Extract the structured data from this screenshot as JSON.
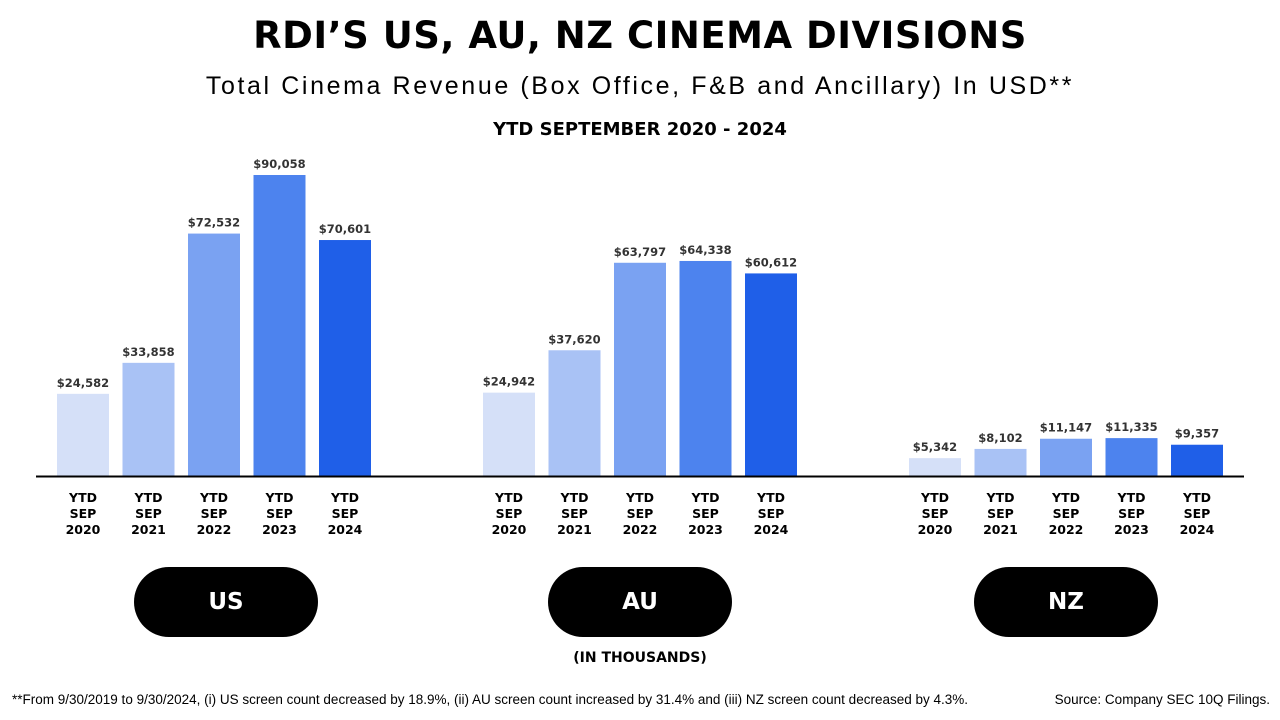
{
  "header": {
    "title": "RDI’S US, AU, NZ CINEMA DIVISIONS",
    "subtitle": "Total Cinema Revenue (Box Office, F&B and Ancillary) In USD**",
    "period": "YTD SEPTEMBER 2020 - 2024"
  },
  "chart_data": {
    "type": "bar",
    "title": "Total Cinema Revenue (Box Office, F&B and Ancillary) In USD**",
    "units": "(IN THOUSANDS)",
    "categories": [
      "YTD SEP 2020",
      "YTD SEP 2021",
      "YTD SEP 2022",
      "YTD SEP 2023",
      "YTD SEP 2024"
    ],
    "category_lines": [
      [
        "YTD",
        "SEP",
        "2020"
      ],
      [
        "YTD",
        "SEP",
        "2021"
      ],
      [
        "YTD",
        "SEP",
        "2022"
      ],
      [
        "YTD",
        "SEP",
        "2023"
      ],
      [
        "YTD",
        "SEP",
        "2024"
      ]
    ],
    "bar_colors": [
      "#d5e0f8",
      "#a9c2f5",
      "#7aa2f2",
      "#4d83ee",
      "#1f5fe8"
    ],
    "ylim": [
      0,
      100000
    ],
    "groups": [
      {
        "name": "US",
        "values": [
          24582,
          33858,
          72532,
          90058,
          70601
        ],
        "labels": [
          "$24,582",
          "$33,858",
          "$72,532",
          "$90,058",
          "$70,601"
        ]
      },
      {
        "name": "AU",
        "values": [
          24942,
          37620,
          63797,
          64338,
          60612
        ],
        "labels": [
          "$24,942",
          "$37,620",
          "$63,797",
          "$64,338",
          "$60,612"
        ]
      },
      {
        "name": "NZ",
        "values": [
          5342,
          8102,
          11147,
          11335,
          9357
        ],
        "labels": [
          "$5,342",
          "$8,102",
          "$11,147",
          "$11,335",
          "$9,357"
        ]
      }
    ]
  },
  "units_label": "(IN THOUSANDS)",
  "footnote": "**From 9/30/2019 to 9/30/2024, (i) US screen count decreased by 18.9%, (ii) AU screen count increased by 31.4% and (iii) NZ screen count decreased by 4.3%.",
  "source": "Source: Company SEC 10Q Filings."
}
